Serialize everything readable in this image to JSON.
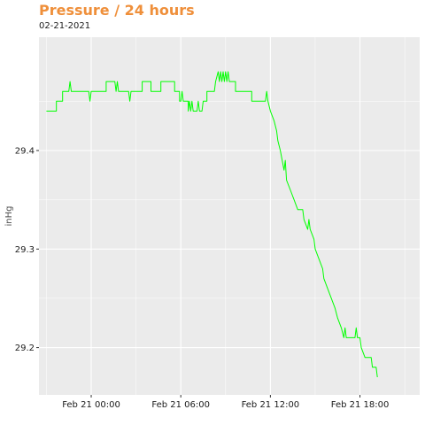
{
  "title": "Pressure / 24 hours",
  "subtitle": "02-21-2021",
  "colors": {
    "title": "#ef8f3a",
    "line": "#00ff00",
    "panel": "#ebebeb",
    "grid": "#ffffff"
  },
  "chart_data": {
    "type": "line",
    "ylabel": "inHg",
    "xlabel": "",
    "grid": true,
    "legend": "none",
    "xlim": [
      "2021-02-20 20:30",
      "2021-02-21 22:00"
    ],
    "ylim": [
      29.152,
      29.515
    ],
    "x_ticks": [
      {
        "at": "2021-02-21 00:00",
        "label": "Feb 21 00:00"
      },
      {
        "at": "2021-02-21 06:00",
        "label": "Feb 21 06:00"
      },
      {
        "at": "2021-02-21 12:00",
        "label": "Feb 21 12:00"
      },
      {
        "at": "2021-02-21 18:00",
        "label": "Feb 21 18:00"
      }
    ],
    "y_ticks": [
      29.2,
      29.3,
      29.4
    ],
    "series": [
      {
        "points": [
          [
            "2021-02-20 21:00",
            29.44
          ],
          [
            "2021-02-20 21:40",
            29.44
          ],
          [
            "2021-02-20 21:40",
            29.45
          ],
          [
            "2021-02-20 22:05",
            29.45
          ],
          [
            "2021-02-20 22:05",
            29.46
          ],
          [
            "2021-02-20 22:30",
            29.46
          ],
          [
            "2021-02-20 22:35",
            29.47
          ],
          [
            "2021-02-20 22:40",
            29.46
          ],
          [
            "2021-02-20 23:50",
            29.46
          ],
          [
            "2021-02-20 23:55",
            29.45
          ],
          [
            "2021-02-21 00:00",
            29.46
          ],
          [
            "2021-02-21 01:00",
            29.46
          ],
          [
            "2021-02-21 01:00",
            29.47
          ],
          [
            "2021-02-21 01:35",
            29.47
          ],
          [
            "2021-02-21 01:40",
            29.46
          ],
          [
            "2021-02-21 01:45",
            29.47
          ],
          [
            "2021-02-21 01:50",
            29.46
          ],
          [
            "2021-02-21 02:30",
            29.46
          ],
          [
            "2021-02-21 02:35",
            29.45
          ],
          [
            "2021-02-21 02:40",
            29.46
          ],
          [
            "2021-02-21 03:25",
            29.46
          ],
          [
            "2021-02-21 03:25",
            29.47
          ],
          [
            "2021-02-21 04:00",
            29.47
          ],
          [
            "2021-02-21 04:00",
            29.46
          ],
          [
            "2021-02-21 04:40",
            29.46
          ],
          [
            "2021-02-21 04:40",
            29.47
          ],
          [
            "2021-02-21 05:35",
            29.47
          ],
          [
            "2021-02-21 05:35",
            29.46
          ],
          [
            "2021-02-21 05:55",
            29.46
          ],
          [
            "2021-02-21 05:55",
            29.45
          ],
          [
            "2021-02-21 06:00",
            29.45
          ],
          [
            "2021-02-21 06:05",
            29.46
          ],
          [
            "2021-02-21 06:10",
            29.45
          ],
          [
            "2021-02-21 06:30",
            29.45
          ],
          [
            "2021-02-21 06:30",
            29.44
          ],
          [
            "2021-02-21 06:35",
            29.45
          ],
          [
            "2021-02-21 06:40",
            29.44
          ],
          [
            "2021-02-21 06:45",
            29.45
          ],
          [
            "2021-02-21 06:50",
            29.44
          ],
          [
            "2021-02-21 07:05",
            29.44
          ],
          [
            "2021-02-21 07:10",
            29.45
          ],
          [
            "2021-02-21 07:15",
            29.44
          ],
          [
            "2021-02-21 07:25",
            29.44
          ],
          [
            "2021-02-21 07:30",
            29.45
          ],
          [
            "2021-02-21 07:45",
            29.45
          ],
          [
            "2021-02-21 07:45",
            29.46
          ],
          [
            "2021-02-21 08:15",
            29.46
          ],
          [
            "2021-02-21 08:20",
            29.47
          ],
          [
            "2021-02-21 08:30",
            29.48
          ],
          [
            "2021-02-21 08:35",
            29.47
          ],
          [
            "2021-02-21 08:40",
            29.48
          ],
          [
            "2021-02-21 08:45",
            29.47
          ],
          [
            "2021-02-21 08:50",
            29.48
          ],
          [
            "2021-02-21 08:55",
            29.47
          ],
          [
            "2021-02-21 09:00",
            29.48
          ],
          [
            "2021-02-21 09:05",
            29.47
          ],
          [
            "2021-02-21 09:10",
            29.48
          ],
          [
            "2021-02-21 09:15",
            29.47
          ],
          [
            "2021-02-21 09:30",
            29.47
          ],
          [
            "2021-02-21 09:40",
            29.47
          ],
          [
            "2021-02-21 09:40",
            29.46
          ],
          [
            "2021-02-21 10:45",
            29.46
          ],
          [
            "2021-02-21 10:45",
            29.45
          ],
          [
            "2021-02-21 11:40",
            29.45
          ],
          [
            "2021-02-21 11:45",
            29.46
          ],
          [
            "2021-02-21 11:50",
            29.45
          ],
          [
            "2021-02-21 12:00",
            29.44
          ],
          [
            "2021-02-21 12:15",
            29.43
          ],
          [
            "2021-02-21 12:25",
            29.42
          ],
          [
            "2021-02-21 12:30",
            29.41
          ],
          [
            "2021-02-21 12:40",
            29.4
          ],
          [
            "2021-02-21 12:55",
            29.38
          ],
          [
            "2021-02-21 13:00",
            29.39
          ],
          [
            "2021-02-21 13:05",
            29.37
          ],
          [
            "2021-02-21 13:20",
            29.36
          ],
          [
            "2021-02-21 13:35",
            29.35
          ],
          [
            "2021-02-21 13:50",
            29.34
          ],
          [
            "2021-02-21 14:10",
            29.34
          ],
          [
            "2021-02-21 14:15",
            29.33
          ],
          [
            "2021-02-21 14:30",
            29.32
          ],
          [
            "2021-02-21 14:35",
            29.33
          ],
          [
            "2021-02-21 14:40",
            29.32
          ],
          [
            "2021-02-21 14:55",
            29.31
          ],
          [
            "2021-02-21 15:00",
            29.3
          ],
          [
            "2021-02-21 15:15",
            29.29
          ],
          [
            "2021-02-21 15:30",
            29.28
          ],
          [
            "2021-02-21 15:35",
            29.27
          ],
          [
            "2021-02-21 15:50",
            29.26
          ],
          [
            "2021-02-21 16:05",
            29.25
          ],
          [
            "2021-02-21 16:20",
            29.24
          ],
          [
            "2021-02-21 16:30",
            29.23
          ],
          [
            "2021-02-21 16:45",
            29.22
          ],
          [
            "2021-02-21 16:55",
            29.21
          ],
          [
            "2021-02-21 17:00",
            29.22
          ],
          [
            "2021-02-21 17:05",
            29.21
          ],
          [
            "2021-02-21 17:40",
            29.21
          ],
          [
            "2021-02-21 17:45",
            29.22
          ],
          [
            "2021-02-21 17:50",
            29.21
          ],
          [
            "2021-02-21 18:00",
            29.21
          ],
          [
            "2021-02-21 18:05",
            29.2
          ],
          [
            "2021-02-21 18:20",
            29.19
          ],
          [
            "2021-02-21 18:45",
            29.19
          ],
          [
            "2021-02-21 18:50",
            29.18
          ],
          [
            "2021-02-21 19:05",
            29.18
          ],
          [
            "2021-02-21 19:10",
            29.17
          ]
        ]
      }
    ]
  }
}
